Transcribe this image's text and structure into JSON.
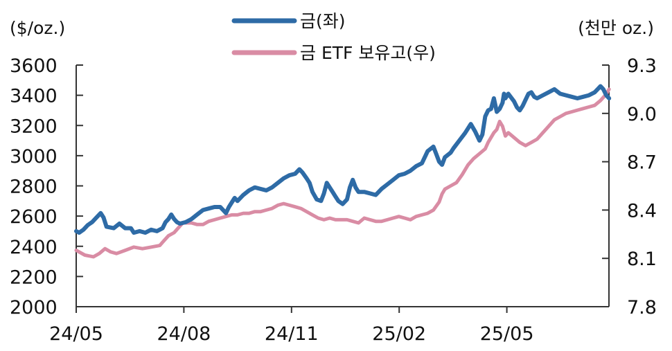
{
  "chart_data": {
    "type": "line",
    "title": "",
    "left_axis": {
      "unit_label": "($/oz.)",
      "range": [
        2000,
        3600
      ],
      "ticks": [
        "3600",
        "3400",
        "3200",
        "3000",
        "2800",
        "2600",
        "2400",
        "2200",
        "2000"
      ]
    },
    "right_axis": {
      "unit_label": "(천만 oz.)",
      "range": [
        7.8,
        9.3
      ],
      "ticks": [
        "9.3",
        "9.0",
        "8.7",
        "8.4",
        "8.1",
        "7.8"
      ]
    },
    "x_axis": {
      "ticks": [
        "24/05",
        "24/08",
        "24/11",
        "25/02",
        "25/05"
      ],
      "range_months": [
        0,
        15
      ]
    },
    "grid": false,
    "legend_position": "top-center",
    "series": [
      {
        "name": "금(좌)",
        "axis": "left",
        "color": "#2E6BA6",
        "points": [
          [
            0.0,
            2500
          ],
          [
            0.1,
            2490
          ],
          [
            0.25,
            2510
          ],
          [
            0.4,
            2540
          ],
          [
            0.55,
            2560
          ],
          [
            0.7,
            2590
          ],
          [
            0.85,
            2620
          ],
          [
            0.95,
            2590
          ],
          [
            1.05,
            2530
          ],
          [
            1.3,
            2520
          ],
          [
            1.5,
            2550
          ],
          [
            1.7,
            2520
          ],
          [
            1.9,
            2520
          ],
          [
            2.0,
            2490
          ],
          [
            2.2,
            2500
          ],
          [
            2.4,
            2490
          ],
          [
            2.6,
            2510
          ],
          [
            2.8,
            2500
          ],
          [
            3.0,
            2520
          ],
          [
            3.1,
            2560
          ],
          [
            3.2,
            2580
          ],
          [
            3.3,
            2610
          ],
          [
            3.4,
            2580
          ],
          [
            3.5,
            2560
          ],
          [
            3.6,
            2550
          ],
          [
            3.8,
            2560
          ],
          [
            4.0,
            2580
          ],
          [
            4.2,
            2610
          ],
          [
            4.4,
            2640
          ],
          [
            4.6,
            2650
          ],
          [
            4.8,
            2660
          ],
          [
            5.0,
            2660
          ],
          [
            5.1,
            2640
          ],
          [
            5.2,
            2620
          ],
          [
            5.3,
            2660
          ],
          [
            5.4,
            2690
          ],
          [
            5.5,
            2720
          ],
          [
            5.6,
            2700
          ],
          [
            5.8,
            2740
          ],
          [
            6.0,
            2770
          ],
          [
            6.2,
            2790
          ],
          [
            6.4,
            2780
          ],
          [
            6.6,
            2770
          ],
          [
            6.8,
            2790
          ],
          [
            7.0,
            2820
          ],
          [
            7.2,
            2850
          ],
          [
            7.4,
            2870
          ],
          [
            7.6,
            2880
          ],
          [
            7.75,
            2910
          ],
          [
            7.85,
            2890
          ],
          [
            8.0,
            2850
          ],
          [
            8.1,
            2820
          ],
          [
            8.2,
            2760
          ],
          [
            8.35,
            2710
          ],
          [
            8.5,
            2700
          ],
          [
            8.6,
            2750
          ],
          [
            8.7,
            2820
          ],
          [
            8.8,
            2790
          ],
          [
            8.9,
            2760
          ],
          [
            9.0,
            2730
          ],
          [
            9.1,
            2700
          ],
          [
            9.25,
            2680
          ],
          [
            9.4,
            2710
          ],
          [
            9.5,
            2790
          ],
          [
            9.6,
            2840
          ],
          [
            9.7,
            2790
          ],
          [
            9.8,
            2760
          ],
          [
            10.0,
            2760
          ],
          [
            10.2,
            2750
          ],
          [
            10.4,
            2740
          ],
          [
            10.6,
            2780
          ],
          [
            10.8,
            2810
          ],
          [
            11.0,
            2840
          ],
          [
            11.2,
            2870
          ],
          [
            11.4,
            2880
          ],
          [
            11.6,
            2900
          ],
          [
            11.8,
            2930
          ],
          [
            12.0,
            2950
          ],
          [
            12.2,
            3030
          ],
          [
            12.4,
            3060
          ],
          [
            12.5,
            3010
          ],
          [
            12.6,
            2960
          ],
          [
            12.7,
            2940
          ],
          [
            12.8,
            2990
          ],
          [
            13.0,
            3020
          ],
          [
            13.1,
            3050
          ],
          [
            13.3,
            3100
          ],
          [
            13.5,
            3150
          ],
          [
            13.7,
            3210
          ],
          [
            13.85,
            3160
          ],
          [
            14.0,
            3100
          ],
          [
            14.1,
            3140
          ],
          [
            14.2,
            3260
          ],
          [
            14.3,
            3300
          ],
          [
            14.4,
            3310
          ],
          [
            14.5,
            3380
          ],
          [
            14.6,
            3290
          ],
          [
            14.7,
            3310
          ],
          [
            14.8,
            3350
          ],
          [
            14.85,
            3410
          ],
          [
            14.9,
            3380
          ],
          [
            15.0,
            3410
          ],
          [
            15.2,
            3360
          ],
          [
            15.3,
            3320
          ],
          [
            15.4,
            3300
          ],
          [
            15.5,
            3330
          ],
          [
            15.6,
            3370
          ],
          [
            15.7,
            3410
          ],
          [
            15.8,
            3420
          ],
          [
            15.9,
            3390
          ],
          [
            16.0,
            3380
          ],
          [
            16.2,
            3400
          ],
          [
            16.4,
            3420
          ],
          [
            16.6,
            3440
          ],
          [
            16.8,
            3410
          ],
          [
            17.0,
            3400
          ],
          [
            17.2,
            3390
          ],
          [
            17.4,
            3380
          ],
          [
            17.6,
            3390
          ],
          [
            17.8,
            3400
          ],
          [
            18.0,
            3420
          ],
          [
            18.1,
            3440
          ],
          [
            18.2,
            3460
          ],
          [
            18.3,
            3440
          ],
          [
            18.4,
            3400
          ],
          [
            18.5,
            3380
          ]
        ]
      },
      {
        "name": "금 ETF 보유고(우)",
        "axis": "right",
        "color": "#D98CA4",
        "points": [
          [
            0.0,
            8.15
          ],
          [
            0.3,
            8.12
          ],
          [
            0.6,
            8.11
          ],
          [
            0.8,
            8.13
          ],
          [
            1.0,
            8.16
          ],
          [
            1.2,
            8.14
          ],
          [
            1.4,
            8.13
          ],
          [
            1.7,
            8.15
          ],
          [
            2.0,
            8.17
          ],
          [
            2.3,
            8.16
          ],
          [
            2.6,
            8.17
          ],
          [
            2.9,
            8.18
          ],
          [
            3.0,
            8.2
          ],
          [
            3.2,
            8.24
          ],
          [
            3.4,
            8.26
          ],
          [
            3.5,
            8.28
          ],
          [
            3.7,
            8.32
          ],
          [
            4.0,
            8.32
          ],
          [
            4.2,
            8.31
          ],
          [
            4.4,
            8.31
          ],
          [
            4.6,
            8.33
          ],
          [
            4.8,
            8.34
          ],
          [
            5.0,
            8.35
          ],
          [
            5.2,
            8.36
          ],
          [
            5.4,
            8.37
          ],
          [
            5.6,
            8.37
          ],
          [
            5.8,
            8.38
          ],
          [
            6.0,
            8.38
          ],
          [
            6.2,
            8.39
          ],
          [
            6.4,
            8.39
          ],
          [
            6.6,
            8.4
          ],
          [
            6.8,
            8.41
          ],
          [
            7.0,
            8.43
          ],
          [
            7.2,
            8.44
          ],
          [
            7.4,
            8.43
          ],
          [
            7.6,
            8.42
          ],
          [
            7.8,
            8.41
          ],
          [
            8.0,
            8.39
          ],
          [
            8.2,
            8.37
          ],
          [
            8.4,
            8.35
          ],
          [
            8.6,
            8.34
          ],
          [
            8.8,
            8.35
          ],
          [
            9.0,
            8.34
          ],
          [
            9.2,
            8.34
          ],
          [
            9.4,
            8.34
          ],
          [
            9.6,
            8.33
          ],
          [
            9.8,
            8.32
          ],
          [
            10.0,
            8.35
          ],
          [
            10.2,
            8.34
          ],
          [
            10.4,
            8.33
          ],
          [
            10.6,
            8.33
          ],
          [
            10.8,
            8.34
          ],
          [
            11.0,
            8.35
          ],
          [
            11.2,
            8.36
          ],
          [
            11.4,
            8.35
          ],
          [
            11.6,
            8.34
          ],
          [
            11.8,
            8.36
          ],
          [
            12.0,
            8.37
          ],
          [
            12.2,
            8.38
          ],
          [
            12.4,
            8.4
          ],
          [
            12.6,
            8.45
          ],
          [
            12.7,
            8.5
          ],
          [
            12.8,
            8.53
          ],
          [
            13.0,
            8.55
          ],
          [
            13.2,
            8.57
          ],
          [
            13.4,
            8.62
          ],
          [
            13.6,
            8.68
          ],
          [
            13.8,
            8.72
          ],
          [
            14.0,
            8.75
          ],
          [
            14.2,
            8.78
          ],
          [
            14.3,
            8.82
          ],
          [
            14.5,
            8.88
          ],
          [
            14.6,
            8.9
          ],
          [
            14.7,
            8.95
          ],
          [
            14.8,
            8.92
          ],
          [
            14.9,
            8.86
          ],
          [
            15.0,
            8.88
          ],
          [
            15.2,
            8.85
          ],
          [
            15.4,
            8.82
          ],
          [
            15.6,
            8.8
          ],
          [
            15.8,
            8.82
          ],
          [
            16.0,
            8.84
          ],
          [
            16.2,
            8.88
          ],
          [
            16.4,
            8.92
          ],
          [
            16.6,
            8.96
          ],
          [
            16.8,
            8.98
          ],
          [
            17.0,
            9.0
          ],
          [
            17.2,
            9.01
          ],
          [
            17.4,
            9.02
          ],
          [
            17.6,
            9.03
          ],
          [
            17.8,
            9.04
          ],
          [
            18.0,
            9.05
          ],
          [
            18.2,
            9.08
          ],
          [
            18.4,
            9.12
          ],
          [
            18.5,
            9.15
          ]
        ]
      }
    ]
  }
}
